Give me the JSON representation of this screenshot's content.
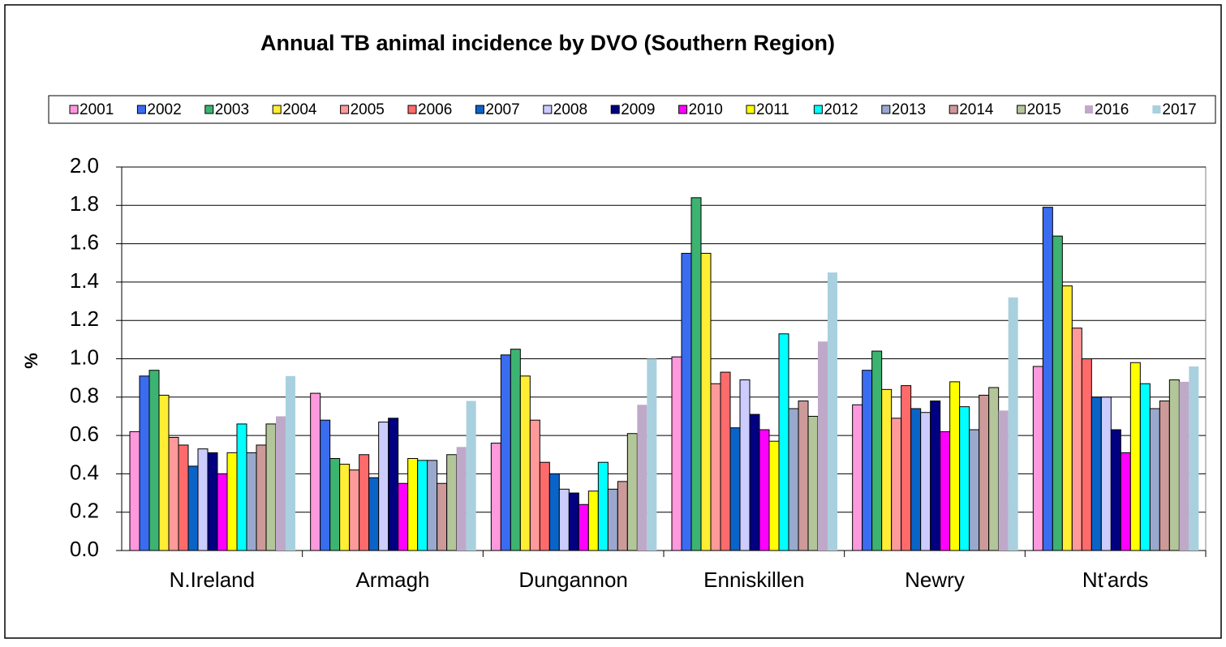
{
  "chart_data": {
    "type": "bar",
    "title": "Annual TB animal incidence by DVO (Southern Region)",
    "y_label": "%",
    "categories": [
      "N.Ireland",
      "Armagh",
      "Dungannon",
      "Enniskillen",
      "Newry",
      "Nt'ards"
    ],
    "series": [
      {
        "name": "2001",
        "color": "#ff99dd",
        "values": [
          0.62,
          0.82,
          0.56,
          1.01,
          0.76,
          0.96
        ]
      },
      {
        "name": "2002",
        "color": "#3a6cf0",
        "values": [
          0.91,
          0.68,
          1.02,
          1.55,
          0.94,
          1.79
        ]
      },
      {
        "name": "2003",
        "color": "#3cb371",
        "values": [
          0.94,
          0.48,
          1.05,
          1.84,
          1.04,
          1.64
        ]
      },
      {
        "name": "2004",
        "color": "#ffee33",
        "values": [
          0.81,
          0.45,
          0.91,
          1.55,
          0.84,
          1.38
        ]
      },
      {
        "name": "2005",
        "color": "#ff9a9a",
        "values": [
          0.59,
          0.42,
          0.68,
          0.87,
          0.69,
          1.16
        ]
      },
      {
        "name": "2006",
        "color": "#ff6b6b",
        "values": [
          0.55,
          0.5,
          0.46,
          0.93,
          0.86,
          1.0
        ]
      },
      {
        "name": "2007",
        "color": "#0a64c8",
        "values": [
          0.44,
          0.38,
          0.4,
          0.64,
          0.74,
          0.8
        ]
      },
      {
        "name": "2008",
        "color": "#ccccff",
        "values": [
          0.53,
          0.67,
          0.32,
          0.89,
          0.72,
          0.8
        ]
      },
      {
        "name": "2009",
        "color": "#000080",
        "values": [
          0.51,
          0.69,
          0.3,
          0.71,
          0.78,
          0.63
        ]
      },
      {
        "name": "2010",
        "color": "#ff00ff",
        "values": [
          0.4,
          0.35,
          0.24,
          0.63,
          0.62,
          0.51
        ]
      },
      {
        "name": "2011",
        "color": "#ffff00",
        "values": [
          0.51,
          0.48,
          0.31,
          0.57,
          0.88,
          0.98
        ]
      },
      {
        "name": "2012",
        "color": "#00ffff",
        "values": [
          0.66,
          0.47,
          0.46,
          1.13,
          0.75,
          0.87
        ]
      },
      {
        "name": "2013",
        "color": "#99a8cc",
        "values": [
          0.51,
          0.47,
          0.32,
          0.74,
          0.63,
          0.74
        ]
      },
      {
        "name": "2014",
        "color": "#cc9a99",
        "values": [
          0.55,
          0.35,
          0.36,
          0.78,
          0.81,
          0.78
        ]
      },
      {
        "name": "2015",
        "color": "#b3c699",
        "values": [
          0.66,
          0.5,
          0.61,
          0.7,
          0.85,
          0.89
        ]
      },
      {
        "name": "2016",
        "color": "#bfa9c9",
        "values": [
          0.7,
          0.54,
          0.76,
          1.09,
          0.73,
          0.88
        ]
      },
      {
        "name": "2017",
        "color": "#a9d0df",
        "values": [
          0.91,
          0.78,
          1.0,
          1.45,
          1.32,
          0.96
        ]
      }
    ],
    "ylim": [
      0,
      2
    ],
    "yticks": [
      {
        "value": 0,
        "label": "0.0"
      },
      0.2,
      0.4,
      0.6,
      0.8,
      {
        "value": 1,
        "label": "1.0"
      },
      1.2,
      1.4,
      1.6,
      1.8,
      {
        "value": 2,
        "label": "2.0"
      }
    ],
    "grid": true,
    "legend": "top"
  }
}
